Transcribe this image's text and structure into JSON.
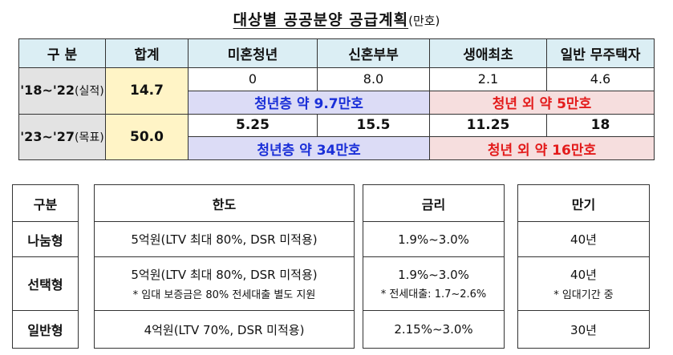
{
  "title": {
    "main": "대상별 공공분양 공급계획",
    "unit": "(만호)"
  },
  "supply_table": {
    "headers": [
      "구 분",
      "합계",
      "미혼청년",
      "신혼부부",
      "생애최초",
      "일반 무주택자"
    ],
    "rows": [
      {
        "label": "'18~'22",
        "label_sub": "(실적)",
        "total": "14.7",
        "values": [
          "0",
          "8.0",
          "2.1",
          "4.6"
        ],
        "youth_summary": "청년층 약 9.7만호",
        "nonyouth_summary": "청년 외 약 5만호"
      },
      {
        "label": "'23~'27",
        "label_sub": "(목표)",
        "total": "50.0",
        "values": [
          "5.25",
          "15.5",
          "11.25",
          "18"
        ],
        "youth_summary": "청년층 약 34만호",
        "nonyouth_summary": "청년 외 약 16만호"
      }
    ]
  },
  "loan_table": {
    "headers": {
      "type": "구분",
      "limit": "한도",
      "rate": "금리",
      "term": "만기"
    },
    "rows": [
      {
        "type": "나눔형",
        "limit": "5억원(LTV 최대 80%, DSR 미적용)",
        "limit_note": "",
        "rate": "1.9%~3.0%",
        "rate_note": "",
        "term": "40년",
        "term_note": ""
      },
      {
        "type": "선택형",
        "limit": "5억원(LTV 최대 80%, DSR 미적용)",
        "limit_note": "* 임대 보증금은 80% 전세대출 별도 지원",
        "rate": "1.9%~3.0%",
        "rate_note": "* 전세대출: 1.7~2.6%",
        "term": "40년",
        "term_note": "* 임대기간 중"
      },
      {
        "type": "일반형",
        "limit": "4억원(LTV 70%, DSR 미적용)",
        "limit_note": "",
        "rate": "2.15%~3.0%",
        "rate_note": "",
        "term": "30년",
        "term_note": ""
      }
    ]
  },
  "colors": {
    "header_blue": "#dbeef4",
    "label_gray": "#e3e3e3",
    "total_yellow": "#fff4c6",
    "youth_bg": "#dcdcf6",
    "youth_text": "#1a2fd8",
    "nonyouth_bg": "#f6dede",
    "nonyouth_text": "#e31b1b"
  }
}
